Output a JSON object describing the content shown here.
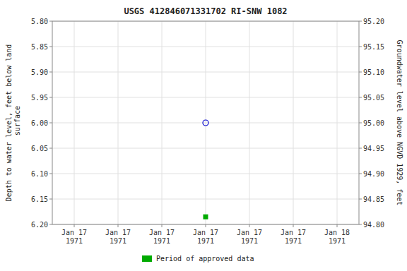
{
  "chart_data": {
    "type": "scatter",
    "title": "USGS 412846071331702 RI-SNW 1082",
    "categories": [
      "Jan 17\n1971",
      "Jan 17\n1971",
      "Jan 17\n1971",
      "Jan 17\n1971",
      "Jan 17\n1971",
      "Jan 17\n1971",
      "Jan 18\n1971"
    ],
    "y_label": "Depth to water level, feet below land\n surface",
    "y2_label": "Groundwater level above NGVD 1929, feet",
    "ylim": [
      6.2,
      5.8
    ],
    "yticks": [
      {
        "value": 5.8,
        "label": "5.80"
      },
      5.85,
      {
        "value": 5.9,
        "label": "5.90"
      },
      5.95,
      {
        "value": 6,
        "label": "6.00"
      },
      6.05,
      {
        "value": 6.1,
        "label": "6.10"
      },
      6.15,
      {
        "value": 6.2,
        "label": "6.20"
      }
    ],
    "y2lim": [
      94.8,
      95.2
    ],
    "y2ticks": [
      {
        "value": 94.8,
        "label": "94.80"
      },
      94.85,
      {
        "value": 94.9,
        "label": "94.90"
      },
      94.95,
      {
        "value": 95,
        "label": "95.00"
      },
      95.05,
      {
        "value": 95.1,
        "label": "95.10"
      },
      95.15,
      {
        "value": 95.2,
        "label": "95.20"
      }
    ],
    "grid": true,
    "legend": "bottom",
    "series": [
      {
        "color": "#0000cc",
        "marker": "circle",
        "values": [
          null,
          null,
          null,
          6.0,
          null,
          null,
          null
        ]
      },
      {
        "name": "Period of approved data",
        "color": "#00aa00",
        "marker": "square",
        "values": [
          null,
          null,
          null,
          6.185,
          null,
          null,
          null
        ]
      }
    ]
  }
}
